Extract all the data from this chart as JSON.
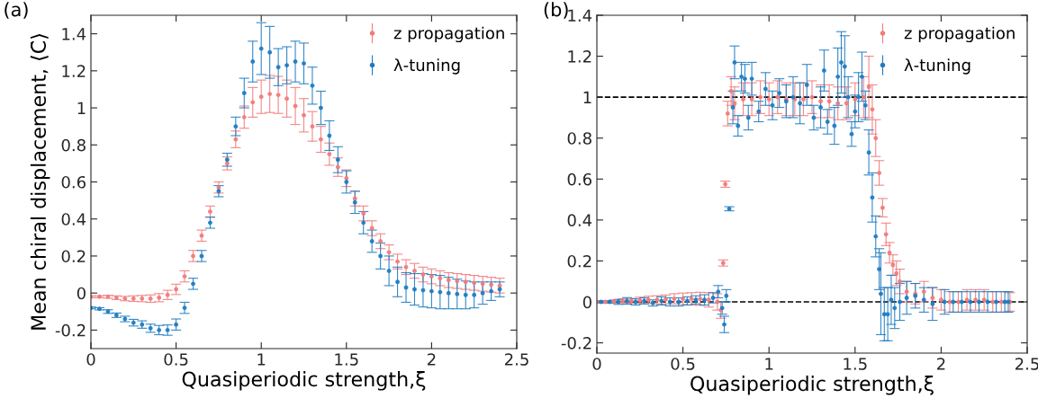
{
  "chart_data": [
    {
      "type": "scatter",
      "title": "(a)",
      "xlabel": "Quasiperiodic strength,ξ",
      "ylabel": "Mean chiral displacement, ⟨C̄⟩",
      "xlim": [
        0,
        2.5
      ],
      "xticks": [
        0,
        0.5,
        1,
        1.5,
        2,
        2.5
      ],
      "ylim": [
        -0.3,
        1.5
      ],
      "yticks": [
        -0.2,
        0,
        0.2,
        0.4,
        0.6,
        0.8,
        1,
        1.2,
        1.4
      ],
      "grid": false,
      "legend": "top right",
      "marker": "circle",
      "series": [
        {
          "name": "z propagation",
          "color": "#f27b7b",
          "x": [
            0,
            0.05,
            0.1,
            0.15,
            0.2,
            0.25,
            0.3,
            0.35,
            0.4,
            0.45,
            0.5,
            0.55,
            0.6,
            0.65,
            0.7,
            0.75,
            0.8,
            0.85,
            0.9,
            0.95,
            1.0,
            1.05,
            1.1,
            1.15,
            1.2,
            1.25,
            1.3,
            1.35,
            1.4,
            1.45,
            1.5,
            1.55,
            1.6,
            1.65,
            1.7,
            1.75,
            1.8,
            1.85,
            1.9,
            1.95,
            2.0,
            2.05,
            2.1,
            2.15,
            2.2,
            2.25,
            2.3,
            2.35,
            2.4
          ],
          "values": [
            -0.02,
            -0.02,
            -0.02,
            -0.025,
            -0.03,
            -0.03,
            -0.03,
            -0.03,
            -0.025,
            -0.01,
            0.02,
            0.09,
            0.2,
            0.31,
            0.44,
            0.57,
            0.7,
            0.83,
            0.95,
            1.03,
            1.06,
            1.075,
            1.07,
            1.05,
            1.01,
            0.96,
            0.9,
            0.83,
            0.75,
            0.68,
            0.62,
            0.51,
            0.43,
            0.35,
            0.28,
            0.22,
            0.17,
            0.14,
            0.12,
            0.1,
            0.09,
            0.08,
            0.07,
            0.065,
            0.06,
            0.055,
            0.05,
            0.045,
            0.04
          ],
          "errors": [
            0.005,
            0.005,
            0.008,
            0.01,
            0.012,
            0.015,
            0.017,
            0.02,
            0.022,
            0.025,
            0.028,
            0.03,
            0.03,
            0.03,
            0.03,
            0.03,
            0.035,
            0.045,
            0.06,
            0.08,
            0.09,
            0.1,
            0.1,
            0.1,
            0.1,
            0.09,
            0.08,
            0.07,
            0.06,
            0.05,
            0.045,
            0.04,
            0.04,
            0.04,
            0.04,
            0.04,
            0.04,
            0.04,
            0.04,
            0.04,
            0.04,
            0.04,
            0.04,
            0.04,
            0.04,
            0.04,
            0.04,
            0.04,
            0.04
          ]
        },
        {
          "name": "λ-tuning",
          "color": "#1f7cc2",
          "x": [
            0,
            0.05,
            0.1,
            0.15,
            0.2,
            0.25,
            0.3,
            0.35,
            0.4,
            0.45,
            0.5,
            0.55,
            0.6,
            0.65,
            0.7,
            0.75,
            0.8,
            0.85,
            0.9,
            0.95,
            1.0,
            1.05,
            1.1,
            1.15,
            1.2,
            1.25,
            1.3,
            1.35,
            1.4,
            1.45,
            1.5,
            1.55,
            1.6,
            1.65,
            1.7,
            1.75,
            1.8,
            1.85,
            1.9,
            1.95,
            2.0,
            2.05,
            2.1,
            2.15,
            2.2,
            2.25,
            2.3,
            2.35,
            2.4
          ],
          "values": [
            -0.08,
            -0.085,
            -0.1,
            -0.12,
            -0.14,
            -0.16,
            -0.17,
            -0.19,
            -0.2,
            -0.2,
            -0.17,
            -0.08,
            0.05,
            0.2,
            0.38,
            0.55,
            0.72,
            0.9,
            1.08,
            1.25,
            1.32,
            1.3,
            1.22,
            1.23,
            1.25,
            1.24,
            1.12,
            1.0,
            0.85,
            0.72,
            0.6,
            0.49,
            0.38,
            0.28,
            0.2,
            0.12,
            0.06,
            0.03,
            0.02,
            0.015,
            0.01,
            0.005,
            0.0,
            -0.005,
            -0.01,
            -0.01,
            0.0,
            0.01,
            0.02
          ],
          "errors": [
            0.005,
            0.006,
            0.01,
            0.012,
            0.015,
            0.018,
            0.02,
            0.022,
            0.025,
            0.028,
            0.03,
            0.03,
            0.03,
            0.03,
            0.03,
            0.03,
            0.035,
            0.05,
            0.08,
            0.11,
            0.14,
            0.14,
            0.1,
            0.1,
            0.11,
            0.11,
            0.1,
            0.09,
            0.08,
            0.07,
            0.06,
            0.06,
            0.06,
            0.06,
            0.07,
            0.08,
            0.08,
            0.08,
            0.085,
            0.09,
            0.09,
            0.09,
            0.085,
            0.08,
            0.075,
            0.07,
            0.06,
            0.05,
            0.04
          ]
        }
      ]
    },
    {
      "type": "scatter",
      "title": "(b)",
      "xlabel": "Quasiperiodic strength,ξ",
      "xlim": [
        0,
        2.5
      ],
      "xticks": [
        0,
        0.5,
        1,
        1.5,
        2,
        2.5
      ],
      "ylim": [
        -0.25,
        1.4
      ],
      "yticks": [
        -0.2,
        0,
        0.2,
        0.4,
        0.6,
        0.8,
        1,
        1.2,
        1.4
      ],
      "grid": false,
      "legend": "top right",
      "marker": "circle",
      "ref_lines": [
        {
          "axis": "y",
          "value": 1,
          "color": "#000000",
          "line_style": "dashed"
        },
        {
          "axis": "y",
          "value": 0,
          "color": "#000000",
          "line_style": "dashed"
        }
      ],
      "series": [
        {
          "name": "z propagation",
          "color": "#f27b7b",
          "x": [
            0,
            0.05,
            0.1,
            0.15,
            0.2,
            0.25,
            0.3,
            0.35,
            0.4,
            0.45,
            0.5,
            0.55,
            0.6,
            0.65,
            0.7,
            0.72,
            0.734,
            0.746,
            0.76,
            0.78,
            0.8,
            0.85,
            0.9,
            0.95,
            1.0,
            1.05,
            1.1,
            1.15,
            1.2,
            1.25,
            1.3,
            1.35,
            1.4,
            1.45,
            1.5,
            1.55,
            1.58,
            1.6,
            1.62,
            1.64,
            1.66,
            1.68,
            1.7,
            1.72,
            1.74,
            1.76,
            1.8,
            1.85,
            1.9,
            1.95,
            2.0,
            2.05,
            2.1,
            2.15,
            2.2,
            2.25,
            2.3,
            2.35,
            2.4
          ],
          "values": [
            0,
            0,
            0.002,
            0.005,
            0.005,
            0.008,
            0.01,
            0.01,
            0.012,
            0.015,
            0.015,
            0.015,
            0.015,
            0.01,
            0.0,
            -0.04,
            0.19,
            0.575,
            0.92,
            1.03,
            0.97,
            0.99,
            0.99,
            1.0,
            0.99,
            1.0,
            0.99,
            0.99,
            0.99,
            1.0,
            0.98,
            0.98,
            0.97,
            0.97,
            0.99,
            1.0,
            1.05,
            0.94,
            0.8,
            0.63,
            0.46,
            0.33,
            0.24,
            0.18,
            0.14,
            0.1,
            0.05,
            0.04,
            0.05,
            0.02,
            0.01,
            0.0,
            0.0,
            0.01,
            0.01,
            0.01,
            0.0,
            0.0,
            0.0
          ],
          "errors": [
            0.005,
            0.006,
            0.008,
            0.01,
            0.012,
            0.015,
            0.018,
            0.02,
            0.022,
            0.025,
            0.028,
            0.03,
            0.032,
            0.035,
            0.04,
            0.04,
            0.015,
            0.015,
            0.06,
            0.07,
            0.08,
            0.08,
            0.08,
            0.08,
            0.08,
            0.08,
            0.08,
            0.08,
            0.08,
            0.08,
            0.08,
            0.08,
            0.08,
            0.08,
            0.08,
            0.1,
            0.15,
            0.12,
            0.09,
            0.06,
            0.045,
            0.055,
            0.05,
            0.05,
            0.06,
            0.06,
            0.05,
            0.05,
            0.05,
            0.05,
            0.05,
            0.05,
            0.05,
            0.05,
            0.05,
            0.05,
            0.05,
            0.05,
            0.045
          ]
        },
        {
          "name": "λ-tuning",
          "color": "#1f7cc2",
          "x": [
            0.025,
            0.075,
            0.125,
            0.175,
            0.225,
            0.275,
            0.325,
            0.375,
            0.425,
            0.475,
            0.525,
            0.575,
            0.625,
            0.675,
            0.705,
            0.728,
            0.74,
            0.752,
            0.769,
            0.79,
            0.8,
            0.82,
            0.84,
            0.86,
            0.88,
            0.9,
            0.94,
            0.98,
            1.02,
            1.06,
            1.1,
            1.14,
            1.18,
            1.22,
            1.26,
            1.3,
            1.32,
            1.34,
            1.38,
            1.4,
            1.42,
            1.44,
            1.46,
            1.48,
            1.5,
            1.52,
            1.54,
            1.56,
            1.58,
            1.6,
            1.62,
            1.64,
            1.65,
            1.67,
            1.69,
            1.71,
            1.73,
            1.76,
            1.8,
            1.85,
            1.9,
            1.95,
            2.02,
            2.07,
            2.12,
            2.17,
            2.22,
            2.27,
            2.32,
            2.37,
            2.39
          ],
          "values": [
            0,
            0,
            0,
            0.005,
            0.0,
            0.005,
            -0.005,
            0.005,
            0.0,
            0.0,
            0.005,
            0.01,
            0.01,
            0.02,
            0.05,
            -0.03,
            -0.11,
            0.03,
            0.455,
            0.95,
            1.17,
            0.86,
            1.1,
            1.09,
            0.9,
            1.09,
            0.93,
            1.04,
            0.96,
            1.02,
            0.98,
            1.0,
            0.97,
            1.06,
            0.9,
            0.95,
            1.13,
            0.88,
            0.86,
            1.1,
            1.17,
            1.15,
            1.0,
            0.82,
            0.93,
            1.0,
            1.1,
            0.96,
            0.73,
            0.51,
            0.32,
            0.16,
            0.04,
            -0.06,
            -0.06,
            0.01,
            -0.03,
            0.0,
            0.02,
            0.03,
            0.01,
            -0.01,
            0.0,
            0.0,
            0.0,
            0.0,
            0.0,
            0.0,
            0.0,
            0.0,
            0.0
          ],
          "errors": [
            0.005,
            0.006,
            0.012,
            0.016,
            0.015,
            0.015,
            0.015,
            0.02,
            0.02,
            0.02,
            0.02,
            0.02,
            0.025,
            0.025,
            0.03,
            0.03,
            0.04,
            0.03,
            0.01,
            0.08,
            0.08,
            0.05,
            0.07,
            0.07,
            0.06,
            0.08,
            0.05,
            0.08,
            0.07,
            0.07,
            0.08,
            0.1,
            0.1,
            0.1,
            0.06,
            0.1,
            0.1,
            0.06,
            0.09,
            0.14,
            0.15,
            0.15,
            0.1,
            0.06,
            0.08,
            0.12,
            0.12,
            0.07,
            0.11,
            0.12,
            0.1,
            0.1,
            0.2,
            0.13,
            0.13,
            0.12,
            0.1,
            0.09,
            0.08,
            0.06,
            0.06,
            0.08,
            0.06,
            0.05,
            0.05,
            0.05,
            0.05,
            0.05,
            0.05,
            0.05,
            0.05
          ]
        }
      ]
    }
  ]
}
